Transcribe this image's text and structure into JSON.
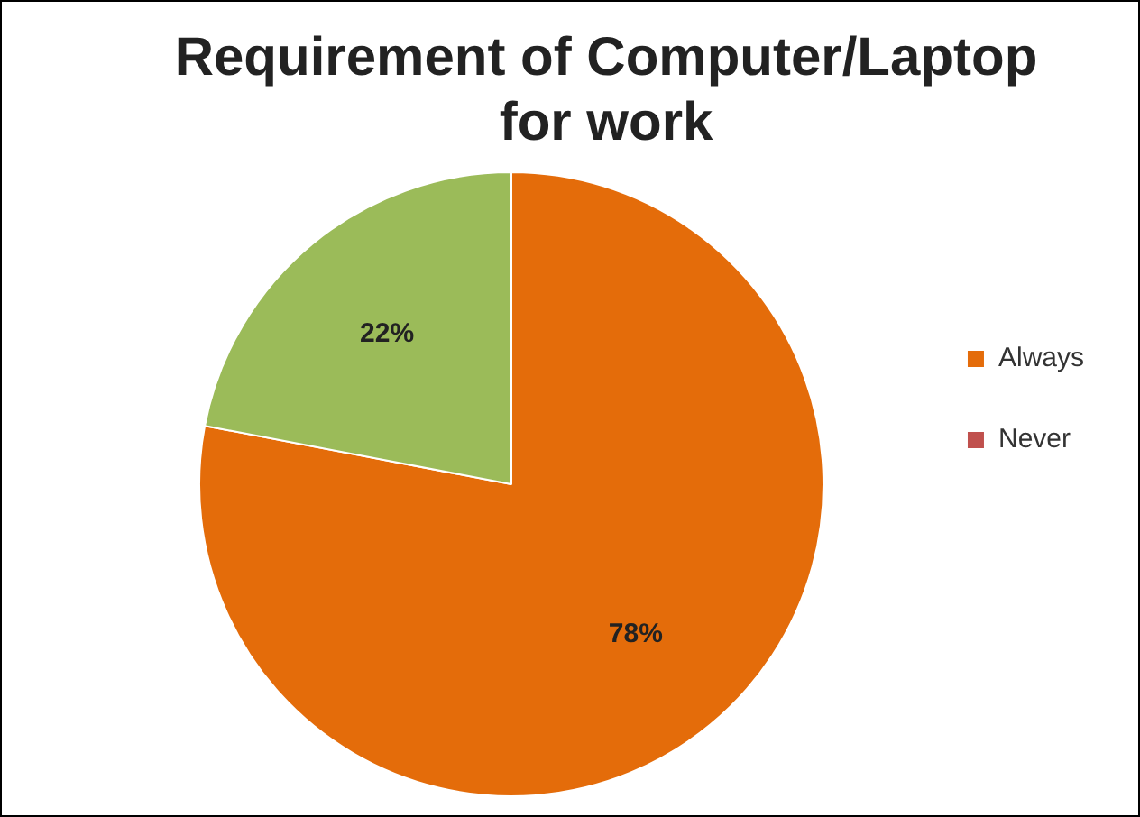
{
  "chart_data": {
    "type": "pie",
    "title": "Requirement of Computer/Laptop for work",
    "categories": [
      "Always",
      "Never",
      null
    ],
    "values": [
      78,
      0,
      22
    ],
    "colors": [
      "#e46c0a",
      "#c0504d",
      "#9bbb59"
    ],
    "value_labels": [
      "78%",
      null,
      "22%"
    ],
    "legend": "right"
  }
}
